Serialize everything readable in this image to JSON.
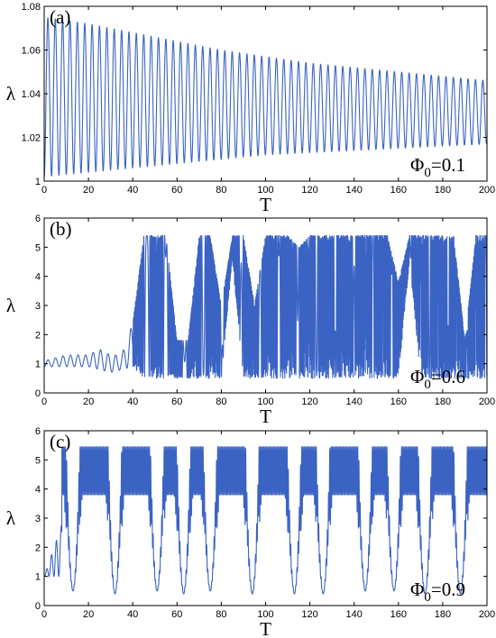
{
  "chart_data": [
    {
      "type": "line",
      "panel_label": "(a)",
      "xlabel": "T",
      "ylabel": "λ",
      "annotation": {
        "symbol": "Φ",
        "subscript": "0",
        "text": "=0.1"
      },
      "xlim": [
        0,
        200
      ],
      "ylim": [
        1.0,
        1.08
      ],
      "xticks": [
        0,
        20,
        40,
        60,
        80,
        100,
        120,
        140,
        160,
        180,
        200
      ],
      "yticks": [
        1,
        1.02,
        1.04,
        1.06,
        1.08
      ],
      "ytick_labels": [
        "1",
        "1.02",
        "1.04",
        "1.06",
        "1.08"
      ],
      "grid": false,
      "line_color": "#3a63c4",
      "description": "damped periodic oscillation, period about 3.3",
      "series": [
        {
          "x": [
            0,
            20,
            40,
            60,
            80,
            100,
            120,
            140,
            160,
            180,
            200
          ],
          "y_max": [
            1.075,
            1.072,
            1.068,
            1.064,
            1.06,
            1.057,
            1.054,
            1.052,
            1.05,
            1.048,
            1.046
          ],
          "y_min": [
            1.002,
            1.004,
            1.006,
            1.008,
            1.01,
            1.012,
            1.013,
            1.014,
            1.015,
            1.016,
            1.017
          ]
        }
      ]
    },
    {
      "type": "line",
      "panel_label": "(b)",
      "xlabel": "T",
      "ylabel": "λ",
      "annotation": {
        "symbol": "Φ",
        "subscript": "0",
        "text": "=0.6"
      },
      "xlim": [
        0,
        200
      ],
      "ylim": [
        0,
        6
      ],
      "xticks": [
        0,
        20,
        40,
        60,
        80,
        100,
        120,
        140,
        160,
        180,
        200
      ],
      "yticks": [
        0,
        1,
        2,
        3,
        4,
        5,
        6
      ],
      "ytick_labels": [
        "0",
        "1",
        "2",
        "3",
        "4",
        "5",
        "6"
      ],
      "grid": false,
      "line_color": "#3a63c4",
      "description": "small oscillation near 1 until T≈40, then large irregular excursions between about 0.4 and 5.4",
      "series": [
        {
          "x": [
            0,
            5,
            10,
            15,
            20,
            25,
            30,
            35,
            40,
            45,
            50,
            55,
            60,
            65,
            70,
            75,
            80,
            85,
            90,
            95,
            100,
            105,
            110,
            115,
            120,
            125,
            130,
            135,
            140,
            145,
            150,
            155,
            160,
            165,
            170,
            175,
            180,
            185,
            190,
            195,
            200
          ],
          "y_max": [
            1.1,
            1.2,
            1.3,
            1.3,
            1.3,
            1.5,
            1.3,
            1.3,
            2.4,
            5.4,
            5.4,
            5.4,
            1.8,
            1.8,
            5.4,
            5.4,
            3.0,
            5.4,
            5.4,
            3.0,
            5.4,
            5.4,
            5.4,
            5.0,
            5.4,
            5.4,
            5.4,
            5.4,
            5.4,
            5.4,
            5.4,
            5.4,
            3.8,
            5.4,
            5.4,
            5.4,
            5.4,
            5.4,
            1.8,
            5.4,
            5.4
          ],
          "y_min": [
            0.9,
            0.9,
            0.9,
            0.9,
            0.9,
            0.8,
            0.7,
            0.8,
            0.9,
            0.5,
            0.5,
            0.5,
            0.5,
            0.5,
            0.5,
            0.5,
            0.5,
            4.5,
            0.5,
            0.5,
            0.5,
            0.5,
            0.5,
            0.5,
            0.5,
            0.5,
            0.5,
            0.5,
            0.5,
            0.5,
            0.5,
            0.5,
            0.5,
            4.5,
            0.5,
            0.5,
            0.5,
            0.5,
            0.5,
            0.5,
            0.5
          ]
        }
      ]
    },
    {
      "type": "line",
      "panel_label": "(c)",
      "xlabel": "T",
      "ylabel": "λ",
      "annotation": {
        "symbol": "Φ",
        "subscript": "0",
        "text": "=0.9"
      },
      "xlim": [
        0,
        200
      ],
      "ylim": [
        0,
        6
      ],
      "xticks": [
        0,
        20,
        40,
        60,
        80,
        100,
        120,
        140,
        160,
        180,
        200
      ],
      "yticks": [
        0,
        1,
        2,
        3,
        4,
        5,
        6
      ],
      "ytick_labels": [
        "0",
        "1",
        "2",
        "3",
        "4",
        "5",
        "6"
      ],
      "grid": false,
      "line_color": "#3a63c4",
      "description": "after a short rise from 1, repeated dense bursts between about 3.8 and 5.4 separated by deep dips to about 0.4",
      "series": [
        {
          "band_max": 5.45,
          "band_min": 3.8,
          "dip_centers": [
            13,
            32,
            51,
            63,
            75,
            94,
            113,
            126,
            145,
            158,
            172,
            188
          ],
          "dip_min": [
            0.5,
            0.4,
            0.5,
            0.4,
            0.5,
            0.4,
            0.4,
            0.4,
            0.5,
            0.5,
            0.4,
            0.4
          ]
        }
      ]
    }
  ]
}
